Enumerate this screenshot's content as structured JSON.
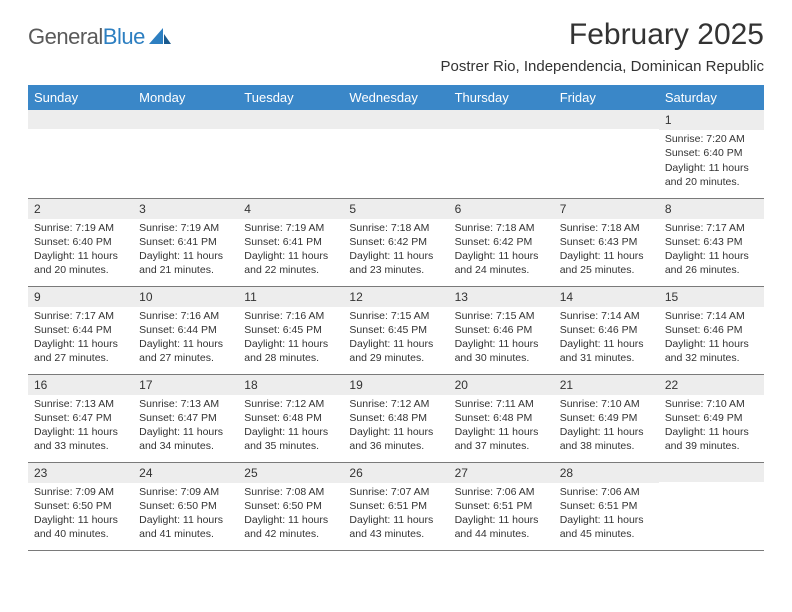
{
  "logo": {
    "text1": "General",
    "text2": "Blue"
  },
  "title": "February 2025",
  "subtitle": "Postrer Rio, Independencia, Dominican Republic",
  "weekdays": [
    "Sunday",
    "Monday",
    "Tuesday",
    "Wednesday",
    "Thursday",
    "Friday",
    "Saturday"
  ],
  "colors": {
    "header_bg": "#3a87c8",
    "daynum_bg": "#ededed",
    "border": "#7a7a7a",
    "text": "#333333",
    "logo_gray": "#5a5a5a",
    "logo_blue": "#2d7fc1"
  },
  "weeks": [
    [
      {
        "n": "",
        "lines": []
      },
      {
        "n": "",
        "lines": []
      },
      {
        "n": "",
        "lines": []
      },
      {
        "n": "",
        "lines": []
      },
      {
        "n": "",
        "lines": []
      },
      {
        "n": "",
        "lines": []
      },
      {
        "n": "1",
        "lines": [
          "Sunrise: 7:20 AM",
          "Sunset: 6:40 PM",
          "Daylight: 11 hours and 20 minutes."
        ]
      }
    ],
    [
      {
        "n": "2",
        "lines": [
          "Sunrise: 7:19 AM",
          "Sunset: 6:40 PM",
          "Daylight: 11 hours and 20 minutes."
        ]
      },
      {
        "n": "3",
        "lines": [
          "Sunrise: 7:19 AM",
          "Sunset: 6:41 PM",
          "Daylight: 11 hours and 21 minutes."
        ]
      },
      {
        "n": "4",
        "lines": [
          "Sunrise: 7:19 AM",
          "Sunset: 6:41 PM",
          "Daylight: 11 hours and 22 minutes."
        ]
      },
      {
        "n": "5",
        "lines": [
          "Sunrise: 7:18 AM",
          "Sunset: 6:42 PM",
          "Daylight: 11 hours and 23 minutes."
        ]
      },
      {
        "n": "6",
        "lines": [
          "Sunrise: 7:18 AM",
          "Sunset: 6:42 PM",
          "Daylight: 11 hours and 24 minutes."
        ]
      },
      {
        "n": "7",
        "lines": [
          "Sunrise: 7:18 AM",
          "Sunset: 6:43 PM",
          "Daylight: 11 hours and 25 minutes."
        ]
      },
      {
        "n": "8",
        "lines": [
          "Sunrise: 7:17 AM",
          "Sunset: 6:43 PM",
          "Daylight: 11 hours and 26 minutes."
        ]
      }
    ],
    [
      {
        "n": "9",
        "lines": [
          "Sunrise: 7:17 AM",
          "Sunset: 6:44 PM",
          "Daylight: 11 hours and 27 minutes."
        ]
      },
      {
        "n": "10",
        "lines": [
          "Sunrise: 7:16 AM",
          "Sunset: 6:44 PM",
          "Daylight: 11 hours and 27 minutes."
        ]
      },
      {
        "n": "11",
        "lines": [
          "Sunrise: 7:16 AM",
          "Sunset: 6:45 PM",
          "Daylight: 11 hours and 28 minutes."
        ]
      },
      {
        "n": "12",
        "lines": [
          "Sunrise: 7:15 AM",
          "Sunset: 6:45 PM",
          "Daylight: 11 hours and 29 minutes."
        ]
      },
      {
        "n": "13",
        "lines": [
          "Sunrise: 7:15 AM",
          "Sunset: 6:46 PM",
          "Daylight: 11 hours and 30 minutes."
        ]
      },
      {
        "n": "14",
        "lines": [
          "Sunrise: 7:14 AM",
          "Sunset: 6:46 PM",
          "Daylight: 11 hours and 31 minutes."
        ]
      },
      {
        "n": "15",
        "lines": [
          "Sunrise: 7:14 AM",
          "Sunset: 6:46 PM",
          "Daylight: 11 hours and 32 minutes."
        ]
      }
    ],
    [
      {
        "n": "16",
        "lines": [
          "Sunrise: 7:13 AM",
          "Sunset: 6:47 PM",
          "Daylight: 11 hours and 33 minutes."
        ]
      },
      {
        "n": "17",
        "lines": [
          "Sunrise: 7:13 AM",
          "Sunset: 6:47 PM",
          "Daylight: 11 hours and 34 minutes."
        ]
      },
      {
        "n": "18",
        "lines": [
          "Sunrise: 7:12 AM",
          "Sunset: 6:48 PM",
          "Daylight: 11 hours and 35 minutes."
        ]
      },
      {
        "n": "19",
        "lines": [
          "Sunrise: 7:12 AM",
          "Sunset: 6:48 PM",
          "Daylight: 11 hours and 36 minutes."
        ]
      },
      {
        "n": "20",
        "lines": [
          "Sunrise: 7:11 AM",
          "Sunset: 6:48 PM",
          "Daylight: 11 hours and 37 minutes."
        ]
      },
      {
        "n": "21",
        "lines": [
          "Sunrise: 7:10 AM",
          "Sunset: 6:49 PM",
          "Daylight: 11 hours and 38 minutes."
        ]
      },
      {
        "n": "22",
        "lines": [
          "Sunrise: 7:10 AM",
          "Sunset: 6:49 PM",
          "Daylight: 11 hours and 39 minutes."
        ]
      }
    ],
    [
      {
        "n": "23",
        "lines": [
          "Sunrise: 7:09 AM",
          "Sunset: 6:50 PM",
          "Daylight: 11 hours and 40 minutes."
        ]
      },
      {
        "n": "24",
        "lines": [
          "Sunrise: 7:09 AM",
          "Sunset: 6:50 PM",
          "Daylight: 11 hours and 41 minutes."
        ]
      },
      {
        "n": "25",
        "lines": [
          "Sunrise: 7:08 AM",
          "Sunset: 6:50 PM",
          "Daylight: 11 hours and 42 minutes."
        ]
      },
      {
        "n": "26",
        "lines": [
          "Sunrise: 7:07 AM",
          "Sunset: 6:51 PM",
          "Daylight: 11 hours and 43 minutes."
        ]
      },
      {
        "n": "27",
        "lines": [
          "Sunrise: 7:06 AM",
          "Sunset: 6:51 PM",
          "Daylight: 11 hours and 44 minutes."
        ]
      },
      {
        "n": "28",
        "lines": [
          "Sunrise: 7:06 AM",
          "Sunset: 6:51 PM",
          "Daylight: 11 hours and 45 minutes."
        ]
      },
      {
        "n": "",
        "lines": []
      }
    ]
  ]
}
